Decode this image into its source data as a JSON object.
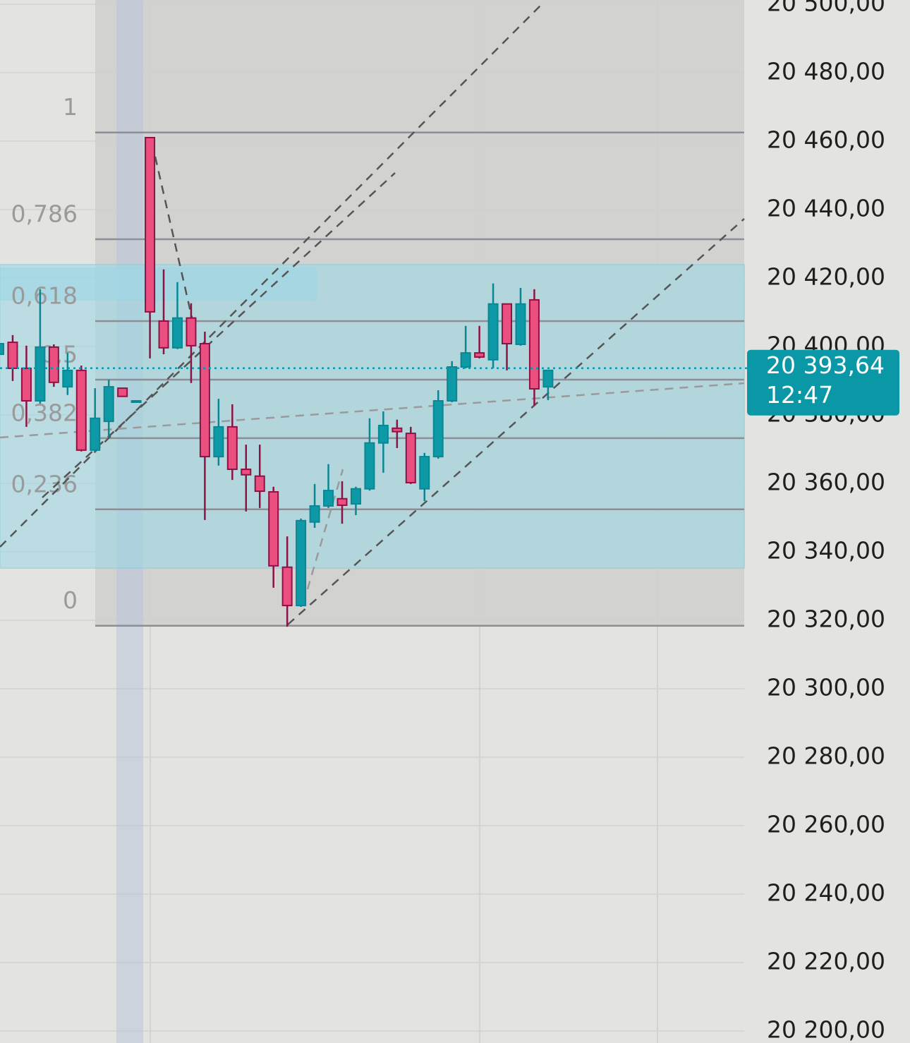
{
  "chart_data": {
    "type": "candlestick",
    "open": [
      20397.7,
      20401.2,
      20393.6,
      20384.1,
      20399.8,
      20388.2,
      20393.0,
      20369.7,
      20378.1,
      20387.8,
      20383.7,
      20461.0,
      20407.4,
      20399.6,
      20408.3,
      20400.8,
      20367.8,
      20376.5,
      20364.1,
      20362.1,
      20357.5,
      20335.5,
      20324.3,
      20348.7,
      20353.4,
      20355.5,
      20354.0,
      20358.4,
      20371.8,
      20376.1,
      20374.6,
      20358.4,
      20367.8,
      20384.1,
      20394.0,
      20398.1,
      20396.1,
      20412.4,
      20400.6,
      20413.6,
      20388.2
    ],
    "high": [
      20404.3,
      20403.3,
      20400.2,
      20416.7,
      20400.6,
      20398.1,
      20394.4,
      20387.8,
      20390.3,
      20387.8,
      20384.1,
      20461.0,
      20422.5,
      20418.8,
      20412.6,
      20404.3,
      20384.7,
      20383.1,
      20371.3,
      20371.3,
      20359.0,
      20344.5,
      20349.7,
      20359.8,
      20365.6,
      20360.6,
      20359.0,
      20379.0,
      20381.0,
      20378.6,
      20376.5,
      20368.9,
      20387.2,
      20395.7,
      20406.0,
      20406.0,
      20418.4,
      20412.4,
      20417.1,
      20416.7,
      20393.0
    ],
    "low": [
      20389.9,
      20389.9,
      20376.5,
      20383.3,
      20388.2,
      20385.8,
      20369.3,
      20369.3,
      20373.4,
      20385.4,
      20383.7,
      20396.5,
      20397.7,
      20399.2,
      20389.3,
      20349.3,
      20365.2,
      20361.0,
      20351.8,
      20352.8,
      20329.5,
      20318.1,
      20323.9,
      20347.0,
      20352.8,
      20348.2,
      20350.7,
      20357.9,
      20363.1,
      20370.3,
      20359.8,
      20354.8,
      20367.2,
      20383.7,
      20393.6,
      20396.5,
      20393.6,
      20393.0,
      20400.2,
      20382.7,
      20384.3
    ],
    "close": [
      20400.8,
      20393.6,
      20384.1,
      20399.8,
      20389.5,
      20393.0,
      20369.7,
      20379.0,
      20388.2,
      20385.4,
      20384.1,
      20410.1,
      20399.6,
      20408.3,
      20400.2,
      20367.8,
      20376.5,
      20364.1,
      20362.5,
      20357.7,
      20335.9,
      20324.3,
      20349.1,
      20353.4,
      20357.9,
      20353.6,
      20358.4,
      20371.8,
      20376.9,
      20375.1,
      20360.2,
      20367.8,
      20384.1,
      20394.0,
      20398.1,
      20396.9,
      20412.4,
      20400.8,
      20412.4,
      20387.6,
      20393.0
    ],
    "up_color": "#0d9aa6",
    "down_color": "#ea4f80",
    "ylim": [
      20196.5,
      20501.2
    ],
    "yticks": [
      {
        "value": 20200,
        "label": "20 200,00"
      },
      {
        "value": 20220,
        "label": "20 220,00"
      },
      {
        "value": 20240,
        "label": "20 240,00"
      },
      {
        "value": 20260,
        "label": "20 260,00"
      },
      {
        "value": 20280,
        "label": "20 280,00"
      },
      {
        "value": 20300,
        "label": "20 300,00"
      },
      {
        "value": 20320,
        "label": "20 320,00"
      },
      {
        "value": 20340,
        "label": "20 340,00"
      },
      {
        "value": 20360,
        "label": "20 360,00"
      },
      {
        "value": 20380,
        "label": "20 380,00"
      },
      {
        "value": 20400,
        "label": "20 400,00"
      },
      {
        "value": 20420,
        "label": "20 420,00"
      },
      {
        "value": 20440,
        "label": "20 440,00"
      },
      {
        "value": 20460,
        "label": "20 460,00"
      },
      {
        "value": 20480,
        "label": "20 480,00"
      },
      {
        "value": 20500,
        "label": "20 500,00"
      }
    ],
    "grid": true,
    "last_price": 20393.64,
    "last_price_label": "20 393,64",
    "countdown": "12:47",
    "fib_levels": [
      {
        "label": "1",
        "price": 20462.5
      },
      {
        "label": "0,786",
        "price": 20431.3
      },
      {
        "label": "0,618",
        "price": 20407.4
      },
      {
        "label": "0,5",
        "price": 20390.3
      },
      {
        "label": "0,382",
        "price": 20373.2
      },
      {
        "label": "0,236",
        "price": 20352.4
      },
      {
        "label": "0",
        "price": 20318.4
      }
    ]
  }
}
